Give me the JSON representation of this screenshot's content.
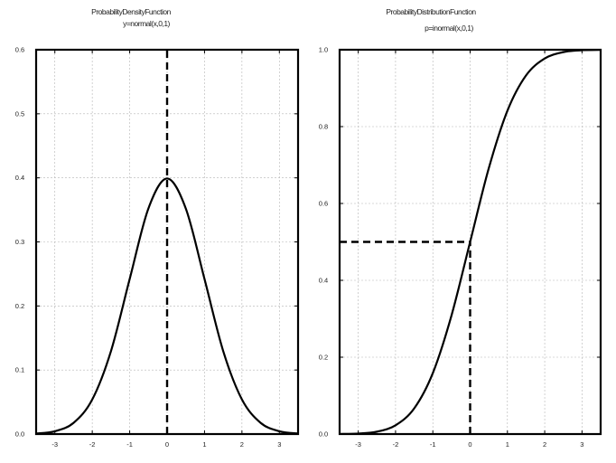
{
  "chart_data": [
    {
      "type": "line",
      "title": "ProbabilityDensityFunction",
      "subtitle": "y=normal(x,0,1)",
      "xlabel": "",
      "ylabel": "",
      "xlim": [
        -3.5,
        3.5
      ],
      "ylim": [
        0,
        0.6
      ],
      "x_ticks": [
        -3,
        -2,
        -1,
        0,
        1,
        2,
        3
      ],
      "x_tick_labels": [
        "-3",
        "-2",
        "-1",
        "0",
        "1",
        "2",
        "3"
      ],
      "y_ticks": [
        0,
        0.1,
        0.2,
        0.3,
        0.4,
        0.5,
        0.6
      ],
      "y_tick_labels": [
        "0.0",
        "0.1",
        "0.2",
        "0.3",
        "0.4",
        "0.5",
        "0.6"
      ],
      "grid": true,
      "series": [
        {
          "x": [
            -3.5,
            -3,
            -2.5,
            -2,
            -1.5,
            -1,
            -0.5,
            0,
            0.5,
            1,
            1.5,
            2,
            2.5,
            3,
            3.5
          ],
          "y": [
            0.0009,
            0.0044,
            0.0175,
            0.054,
            0.1295,
            0.242,
            0.3521,
            0.3989,
            0.3521,
            0.242,
            0.1295,
            0.054,
            0.0175,
            0.0044,
            0.0009
          ]
        }
      ],
      "reference_lines": [
        {
          "style": "dashed",
          "from": [
            0,
            0
          ],
          "to": [
            0,
            0.6
          ]
        }
      ]
    },
    {
      "type": "line",
      "title": "ProbabilityDistributionFunction",
      "subtitle": "p=inormal(x,0,1)",
      "xlabel": "",
      "ylabel": "",
      "xlim": [
        -3.5,
        3.5
      ],
      "ylim": [
        0,
        1.0
      ],
      "x_ticks": [
        -3,
        -2,
        -1,
        0,
        1,
        2,
        3
      ],
      "x_tick_labels": [
        "-3",
        "-2",
        "-1",
        "0",
        "1",
        "2",
        "3"
      ],
      "y_ticks": [
        0,
        0.2,
        0.4,
        0.6,
        0.8,
        1.0
      ],
      "y_tick_labels": [
        "0.0",
        "0.2",
        "0.4",
        "0.6",
        "0.8",
        "1.0"
      ],
      "grid": true,
      "series": [
        {
          "x": [
            -3.5,
            -3,
            -2.5,
            -2,
            -1.5,
            -1,
            -0.5,
            0,
            0.5,
            1,
            1.5,
            2,
            2.5,
            3,
            3.5
          ],
          "y": [
            0.0002,
            0.0013,
            0.0062,
            0.0228,
            0.0668,
            0.1587,
            0.3085,
            0.5,
            0.6915,
            0.8413,
            0.9332,
            0.9772,
            0.9938,
            0.9987,
            0.9998
          ]
        }
      ],
      "reference_lines": [
        {
          "style": "dashed",
          "from": [
            -3.5,
            0.5
          ],
          "to": [
            0,
            0.5
          ]
        },
        {
          "style": "dashed",
          "from": [
            0,
            0
          ],
          "to": [
            0,
            0.5
          ]
        }
      ]
    }
  ]
}
